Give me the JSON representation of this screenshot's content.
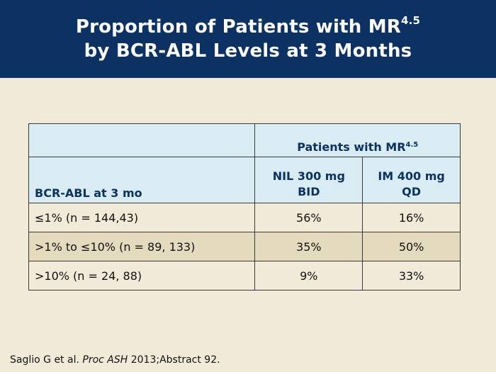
{
  "title": {
    "line1_main": "Proportion of Patients with MR",
    "line1_sup": "4.5",
    "line2": "by BCR-ABL Levels at 3 Months"
  },
  "table": {
    "group_header_main": "Patients with MR",
    "group_header_sup": "4.5",
    "row_header": "BCR-ABL at 3 mo",
    "col1_line1": "NIL 300 mg",
    "col1_line2": "BID",
    "col2_line1": "IM 400 mg",
    "col2_line2": "QD",
    "rows": [
      {
        "label": "≤1% (n = 144,43)",
        "nil": "56%",
        "im": "16%"
      },
      {
        "label": ">1% to ≤10% (n = 89, 133)",
        "nil": "35%",
        "im": "50%"
      },
      {
        "label": ">10% (n = 24, 88)",
        "nil": "9%",
        "im": "33%"
      }
    ]
  },
  "citation": {
    "prefix": "Saglio G et al. ",
    "journal": "Proc ASH",
    "suffix": " 2013;Abstract 92."
  },
  "colors": {
    "header_bg": "#0b3263",
    "page_bg": "#f1ead8",
    "table_header_bg": "#d9ecf3",
    "alt_row_bg": "#e4dbbf"
  }
}
